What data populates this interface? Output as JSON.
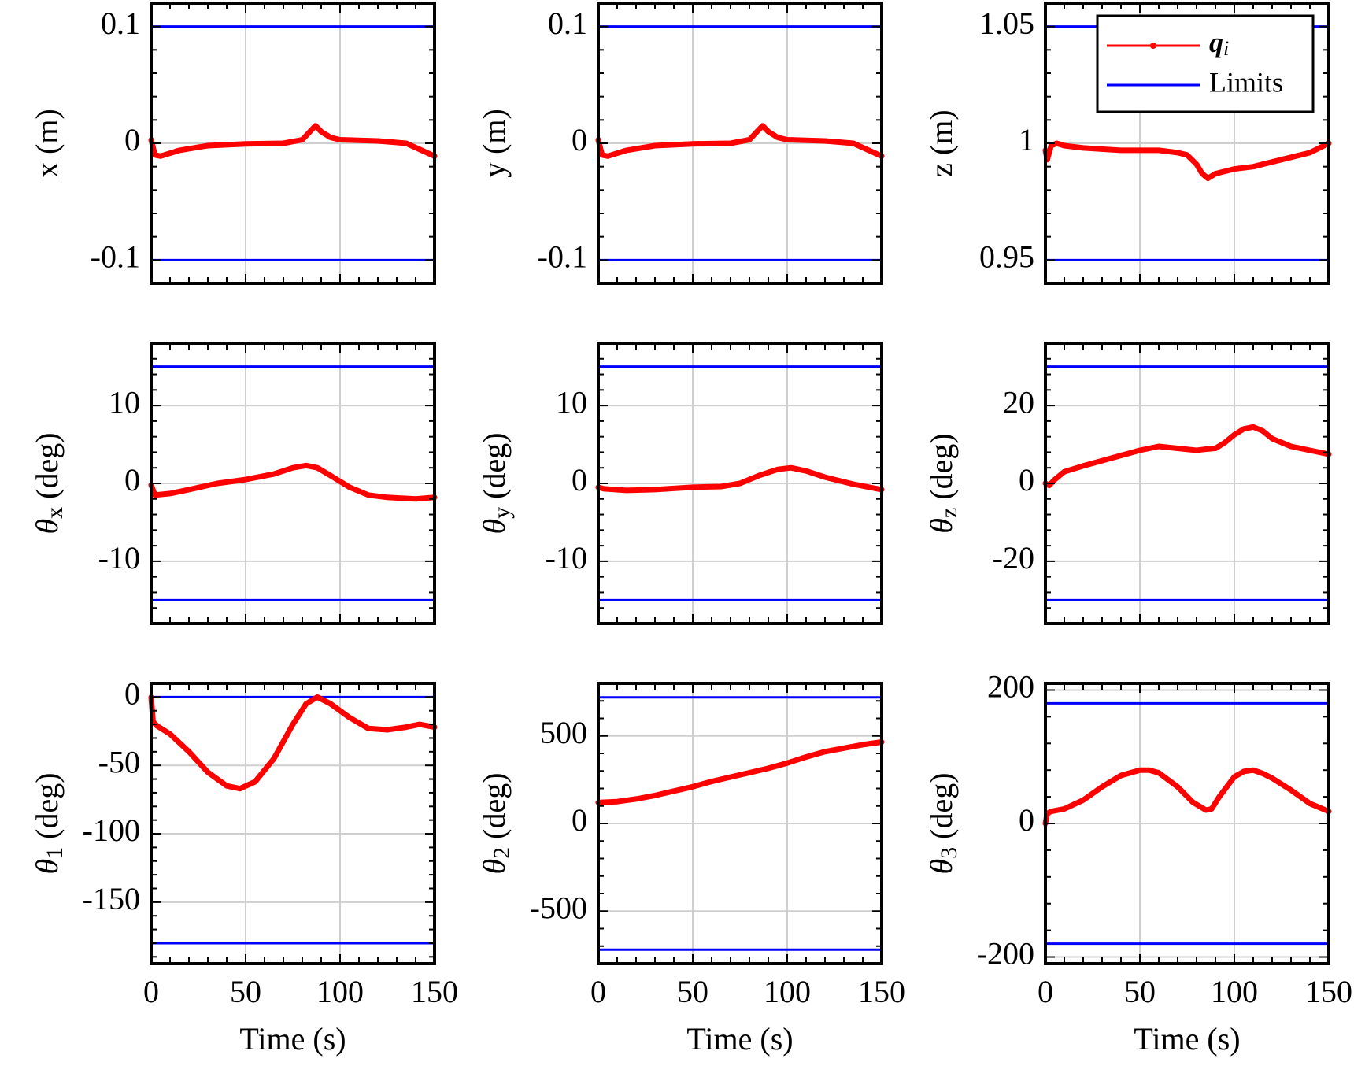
{
  "colors": {
    "series": "#ff0000",
    "limits": "#0000ff",
    "axes": "#000000",
    "grid": "#cfcfcf"
  },
  "legend": {
    "entries": [
      {
        "label": "q",
        "subscript": "i",
        "color": "#ff0000"
      },
      {
        "label": "Limits",
        "color": "#0000ff"
      }
    ]
  },
  "chart_data": [
    {
      "type": "line",
      "ylabel": "x (m)",
      "xlabel": "",
      "xlim": [
        0,
        150
      ],
      "ylim": [
        -0.12,
        0.12
      ],
      "yticks": [
        "0.1",
        "0",
        "-0.1"
      ],
      "xticks": [],
      "limits": [
        -0.1,
        0.1
      ],
      "series": [
        {
          "name": "qi",
          "x": [
            0,
            2,
            5,
            15,
            30,
            50,
            70,
            80,
            84,
            87,
            90,
            95,
            100,
            120,
            135,
            150
          ],
          "y": [
            0.003,
            -0.01,
            -0.011,
            -0.006,
            -0.002,
            -0.0005,
            0,
            0.003,
            0.01,
            0.015,
            0.01,
            0.005,
            0.003,
            0.002,
            0,
            -0.011
          ]
        }
      ]
    },
    {
      "type": "line",
      "ylabel": "y (m)",
      "xlabel": "",
      "xlim": [
        0,
        150
      ],
      "ylim": [
        -0.12,
        0.12
      ],
      "yticks": [
        "0.1",
        "0",
        "-0.1"
      ],
      "xticks": [],
      "limits": [
        -0.1,
        0.1
      ],
      "series": [
        {
          "name": "qi",
          "x": [
            0,
            2,
            5,
            15,
            30,
            50,
            70,
            80,
            84,
            87,
            90,
            95,
            100,
            120,
            135,
            150
          ],
          "y": [
            0.003,
            -0.01,
            -0.011,
            -0.006,
            -0.002,
            -0.0005,
            0,
            0.003,
            0.01,
            0.015,
            0.01,
            0.005,
            0.003,
            0.002,
            0,
            -0.011
          ]
        }
      ]
    },
    {
      "type": "line",
      "ylabel": "z (m)",
      "xlabel": "",
      "xlim": [
        0,
        150
      ],
      "ylim": [
        0.94,
        1.06
      ],
      "yticks": [
        "1.05",
        "1",
        "0.95"
      ],
      "xticks": [],
      "limits": [
        0.95,
        1.05
      ],
      "series": [
        {
          "name": "qi",
          "x": [
            0,
            1,
            3,
            6,
            10,
            20,
            40,
            60,
            70,
            75,
            80,
            83,
            86,
            90,
            95,
            100,
            110,
            120,
            130,
            140,
            150
          ],
          "y": [
            0.997,
            0.993,
            0.999,
            1.0,
            0.999,
            0.998,
            0.997,
            0.997,
            0.996,
            0.995,
            0.991,
            0.987,
            0.985,
            0.987,
            0.988,
            0.989,
            0.99,
            0.992,
            0.994,
            0.996,
            1.0
          ]
        }
      ]
    },
    {
      "type": "line",
      "ylabel": "θx (deg)",
      "xlabel": "",
      "xlim": [
        0,
        150
      ],
      "ylim": [
        -18,
        18
      ],
      "yticks": [
        "10",
        "0",
        "-10"
      ],
      "xticks": [],
      "limits": [
        -15,
        15
      ],
      "series": [
        {
          "name": "qi",
          "x": [
            0,
            2,
            10,
            20,
            35,
            50,
            65,
            75,
            82,
            88,
            95,
            105,
            115,
            125,
            140,
            150
          ],
          "y": [
            -0.2,
            -1.5,
            -1.3,
            -0.8,
            0,
            0.5,
            1.2,
            2,
            2.3,
            2,
            1,
            -0.5,
            -1.5,
            -1.8,
            -2,
            -1.8
          ]
        }
      ]
    },
    {
      "type": "line",
      "ylabel": "θy (deg)",
      "xlabel": "",
      "xlim": [
        0,
        150
      ],
      "ylim": [
        -18,
        18
      ],
      "yticks": [
        "10",
        "0",
        "-10"
      ],
      "xticks": [],
      "limits": [
        -15,
        15
      ],
      "series": [
        {
          "name": "qi",
          "x": [
            0,
            3,
            15,
            30,
            50,
            65,
            75,
            85,
            95,
            102,
            110,
            120,
            135,
            150
          ],
          "y": [
            -0.5,
            -0.7,
            -0.9,
            -0.8,
            -0.5,
            -0.4,
            0,
            1.0,
            1.8,
            2.0,
            1.6,
            0.8,
            -0.1,
            -0.8
          ]
        }
      ]
    },
    {
      "type": "line",
      "ylabel": "θz (deg)",
      "xlabel": "",
      "xlim": [
        0,
        150
      ],
      "ylim": [
        -36,
        36
      ],
      "yticks": [
        "20",
        "0",
        "-20"
      ],
      "xticks": [],
      "limits": [
        -30,
        30
      ],
      "series": [
        {
          "name": "qi",
          "x": [
            0,
            2,
            5,
            10,
            20,
            35,
            50,
            60,
            70,
            80,
            85,
            90,
            95,
            100,
            105,
            110,
            115,
            120,
            130,
            140,
            150
          ],
          "y": [
            0,
            -0.5,
            1,
            3,
            4.5,
            6.5,
            8.5,
            9.5,
            9,
            8.5,
            8.8,
            9,
            10.5,
            12.5,
            14,
            14.5,
            13.5,
            11.5,
            9.5,
            8.5,
            7.5
          ]
        }
      ]
    },
    {
      "type": "line",
      "ylabel": "θ1 (deg)",
      "xlabel": "Time (s)",
      "xlim": [
        0,
        150
      ],
      "ylim": [
        -195,
        10
      ],
      "yticks": [
        "0",
        "-50",
        "-100",
        "-150"
      ],
      "xticks": [
        "0",
        "50",
        "100",
        "150"
      ],
      "limits": [
        -180,
        0
      ],
      "series": [
        {
          "name": "qi",
          "x": [
            0,
            1,
            3,
            10,
            20,
            30,
            40,
            47,
            55,
            65,
            75,
            82,
            88,
            95,
            105,
            115,
            125,
            135,
            142,
            150
          ],
          "y": [
            0,
            -18,
            -21,
            -27,
            -40,
            -55,
            -65,
            -67,
            -62,
            -45,
            -20,
            -5,
            0,
            -5,
            -15,
            -23,
            -24,
            -22,
            -20,
            -22
          ]
        }
      ]
    },
    {
      "type": "line",
      "ylabel": "θ2 (deg)",
      "xlabel": "Time (s)",
      "xlim": [
        0,
        150
      ],
      "ylim": [
        -800,
        800
      ],
      "yticks": [
        "500",
        "0",
        "-500"
      ],
      "xticks": [
        "0",
        "50",
        "100",
        "150"
      ],
      "limits": [
        -720,
        720
      ],
      "series": [
        {
          "name": "qi",
          "x": [
            0,
            10,
            20,
            30,
            40,
            50,
            60,
            70,
            80,
            90,
            100,
            110,
            120,
            130,
            140,
            150
          ],
          "y": [
            120,
            125,
            140,
            160,
            185,
            210,
            240,
            265,
            290,
            315,
            345,
            380,
            410,
            430,
            450,
            465
          ]
        }
      ]
    },
    {
      "type": "line",
      "ylabel": "θ3 (deg)",
      "xlabel": "Time (s)",
      "xlim": [
        0,
        150
      ],
      "ylim": [
        -210,
        210
      ],
      "yticks": [
        "200",
        "0",
        "-200"
      ],
      "xticks": [
        "0",
        "50",
        "100",
        "150"
      ],
      "limits": [
        -180,
        180
      ],
      "series": [
        {
          "name": "qi",
          "x": [
            0,
            1,
            3,
            10,
            20,
            30,
            40,
            50,
            55,
            60,
            70,
            78,
            85,
            88,
            92,
            100,
            105,
            110,
            115,
            120,
            130,
            140,
            150
          ],
          "y": [
            0,
            15,
            18,
            22,
            35,
            55,
            72,
            80,
            80,
            76,
            55,
            32,
            20,
            22,
            40,
            70,
            78,
            80,
            75,
            68,
            50,
            30,
            18
          ]
        }
      ]
    }
  ]
}
